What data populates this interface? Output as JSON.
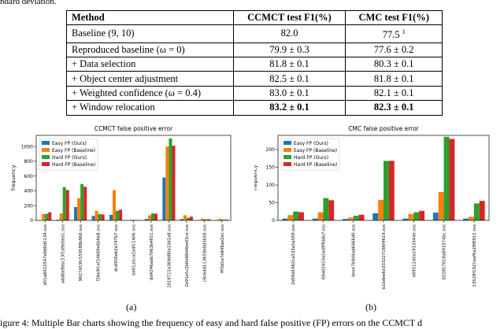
{
  "caption_top": "ndard deviation.",
  "table": {
    "headers": [
      "Method",
      "CCMCT test F1(%)",
      "CMC test F1(%)"
    ],
    "rows": [
      {
        "method": "Baseline (9, 10)",
        "ccmct": "82.0",
        "cmc": "77.5",
        "cmc_sup": "1",
        "bold": false
      },
      {
        "method": "Reproduced baseline (ω = 0)",
        "ccmct": "79.9 ± 0.3",
        "cmc": "77.6 ± 0.2",
        "cmc_sup": "",
        "bold": false
      },
      {
        "method": "+ Data selection",
        "ccmct": "81.8 ± 0.1",
        "cmc": "80.3 ± 0.1",
        "cmc_sup": "",
        "bold": false
      },
      {
        "method": "+ Object center adjustment",
        "ccmct": "82.5 ± 0.1",
        "cmc": "81.8 ± 0.1",
        "cmc_sup": "",
        "bold": false
      },
      {
        "method": "+ Weighted confidence (ω = 0.4)",
        "ccmct": "83.0 ± 0.1",
        "cmc": "82.1 ± 0.1",
        "cmc_sup": "",
        "bold": false
      },
      {
        "method": "+ Window relocation",
        "ccmct": "83.2 ± 0.1",
        "cmc": "82.3 ± 0.1",
        "cmc_sup": "",
        "bold": true
      }
    ]
  },
  "colors": {
    "easy_ours": "#1f77b4",
    "easy_base": "#ff7f0e",
    "hard_ours": "#2ca02c",
    "hard_base": "#d62728"
  },
  "chart_data": [
    {
      "type": "bar",
      "title": "CCMCT false positive error",
      "ylabel": "frequency",
      "ylim": [
        0,
        1150
      ],
      "yticks": [
        0,
        200,
        400,
        600,
        800,
        1000
      ],
      "legend": "top-left",
      "categories": [
        "d51a8422547e0d0d5134.svs",
        "add0a9bbc53f1d9e0ea1.svs",
        "9627453fc559588b966.svs",
        "f26e9fcef24609e6b0e8.svs",
        "dcd956eb2a747b7.svs",
        "be01a5ca2a4fc1406.svs",
        "dd4246abb7063b4651.svs",
        "1018715a369d80a33d2a8.svs",
        "2e91e5c2b0e88d4be03ce.svs",
        "c8c6dd113659e0d3b56.svs",
        "fff3d1e7e848ae2ec.svs"
      ],
      "series": [
        {
          "name": "Easy FP (Ours)",
          "color_key": "easy_ours",
          "values": [
            0,
            10,
            180,
            60,
            75,
            0,
            20,
            580,
            20,
            5,
            5
          ]
        },
        {
          "name": "Easy FP (Baseline)",
          "color_key": "easy_base",
          "values": [
            85,
            95,
            300,
            130,
            410,
            10,
            70,
            1000,
            70,
            25,
            20
          ]
        },
        {
          "name": "Hard FP (Ours)",
          "color_key": "hard_ours",
          "values": [
            90,
            450,
            490,
            85,
            130,
            5,
            95,
            1110,
            35,
            15,
            10
          ]
        },
        {
          "name": "Hard FP (Baseline)",
          "color_key": "hard_base",
          "values": [
            110,
            410,
            455,
            80,
            145,
            5,
            90,
            1010,
            50,
            15,
            10
          ]
        }
      ],
      "sublabel": "(a)"
    },
    {
      "type": "bar",
      "title": "CMC false positive error",
      "ylabel": "frequency",
      "ylim": [
        0,
        240
      ],
      "yticks": [
        0,
        50,
        100,
        150,
        200
      ],
      "legend": "top-left",
      "categories": [
        "2d56d1902ca533a5a509.svs",
        "69a02453a5ad9f6b6cf.svs",
        "4eee7b944ad6466d0.svs",
        "b1bdee6e333227166f4619.svs",
        "e09512d5a1933344e.svs",
        "022857018a893374bc.svs",
        "13528f1921eaf6a29f0915.svs"
      ],
      "series": [
        {
          "name": "Easy FP (Ours)",
          "color_key": "easy_ours",
          "values": [
            5,
            5,
            4,
            20,
            5,
            22,
            5
          ]
        },
        {
          "name": "Easy FP (Baseline)",
          "color_key": "easy_base",
          "values": [
            15,
            23,
            8,
            58,
            18,
            80,
            10
          ]
        },
        {
          "name": "Hard FP (Ours)",
          "color_key": "hard_ours",
          "values": [
            25,
            63,
            13,
            168,
            23,
            236,
            48
          ]
        },
        {
          "name": "Hard FP (Baseline)",
          "color_key": "hard_base",
          "values": [
            23,
            57,
            16,
            168,
            27,
            230,
            55
          ]
        }
      ],
      "sublabel": "(b)"
    }
  ],
  "caption_bottom": "igure 4: Multiple Bar charts showing the frequency of easy and hard false positive (FP) errors on the CCMCT d"
}
